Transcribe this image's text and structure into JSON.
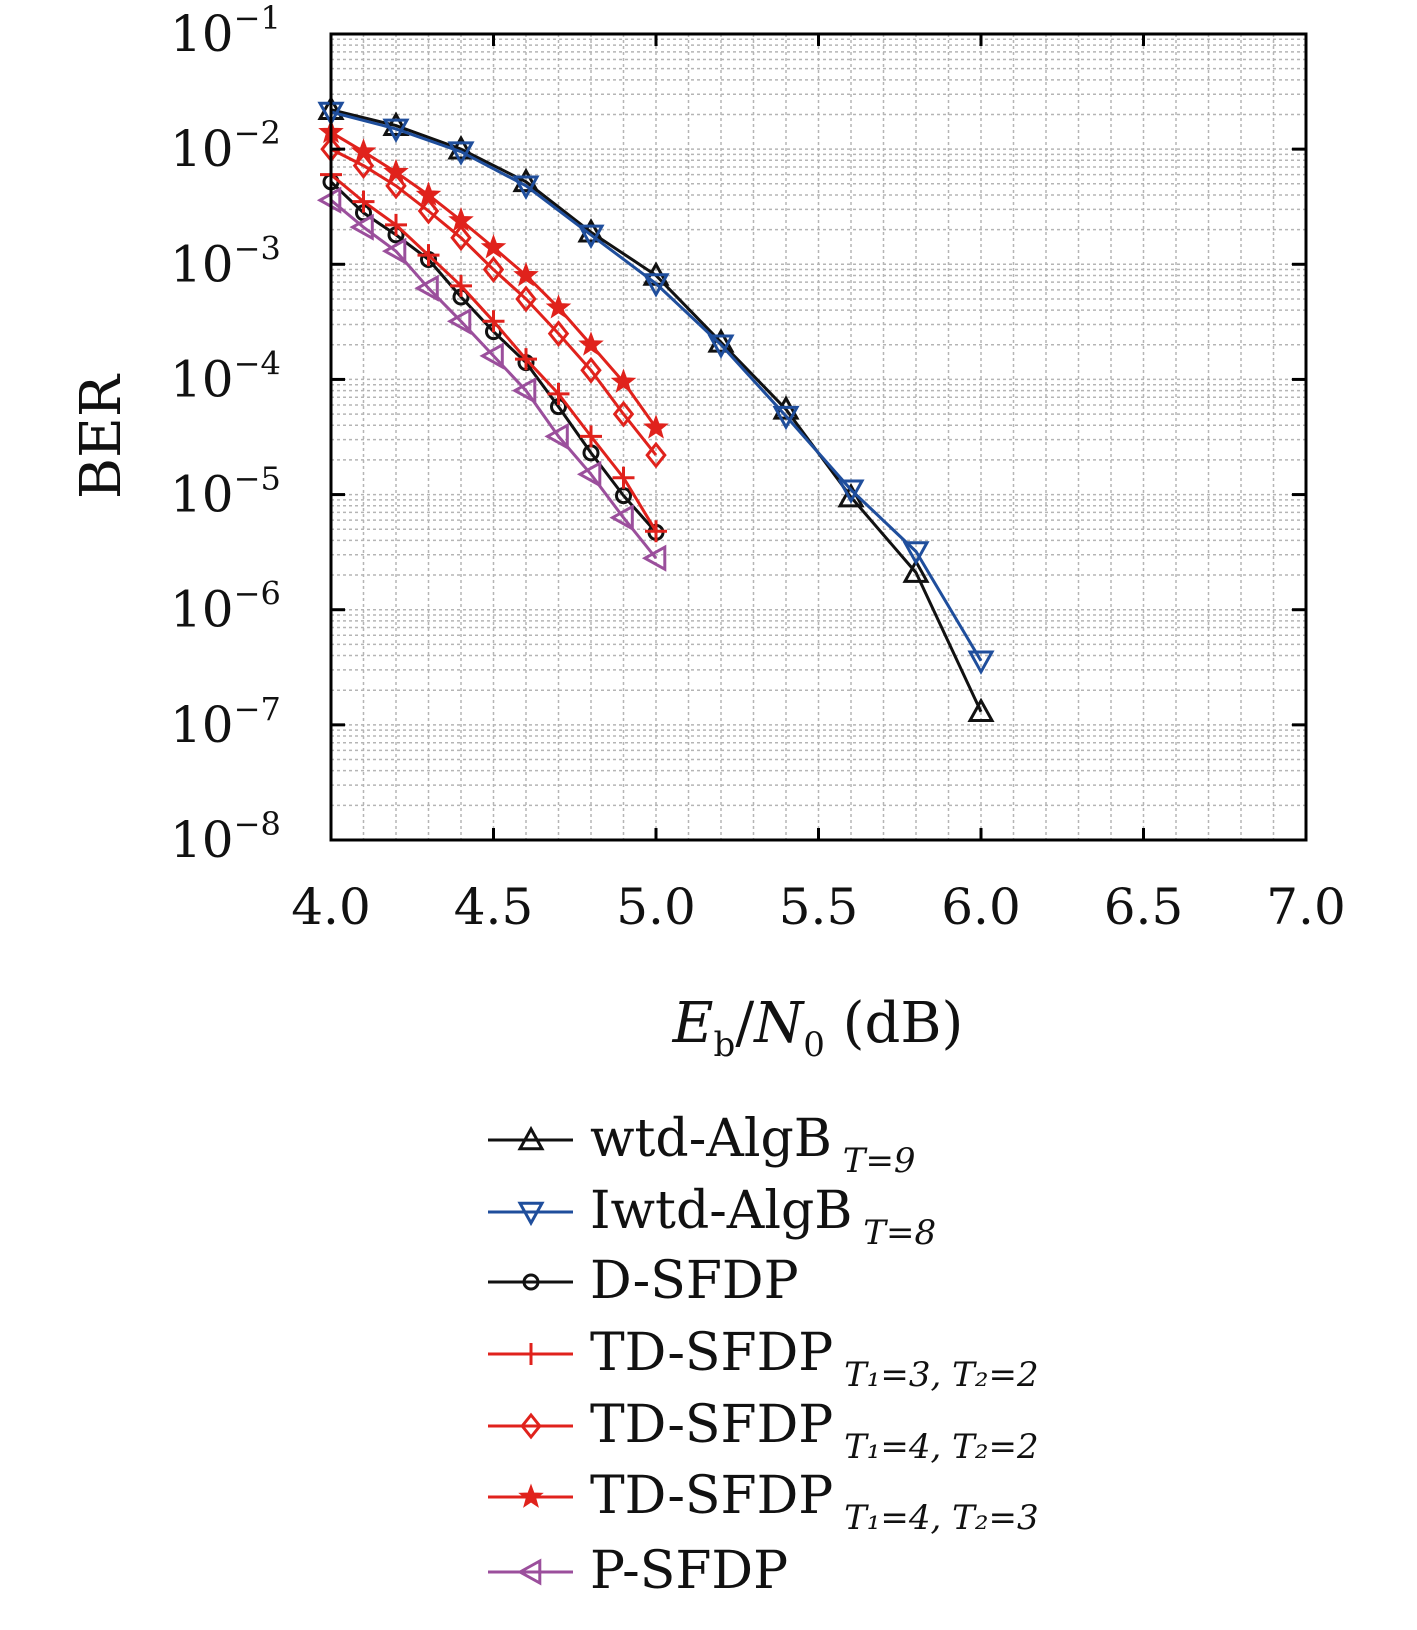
{
  "chart_data": {
    "type": "line",
    "xlabel": {
      "main": "E",
      "sub": "b",
      "sep": "/",
      "main2": "N",
      "sub2": "0",
      "unit": " (dB)"
    },
    "ylabel": "BER",
    "x_ticks": [
      "4.0",
      "4.5",
      "5.0",
      "5.5",
      "6.0",
      "6.5",
      "7.0"
    ],
    "y_ticks": [
      {
        "base": "10",
        "exp": "−1"
      },
      {
        "base": "10",
        "exp": "−2"
      },
      {
        "base": "10",
        "exp": "−3"
      },
      {
        "base": "10",
        "exp": "−4"
      },
      {
        "base": "10",
        "exp": "−5"
      },
      {
        "base": "10",
        "exp": "−6"
      },
      {
        "base": "10",
        "exp": "−7"
      },
      {
        "base": "10",
        "exp": "−8"
      }
    ],
    "xlim": [
      4.0,
      7.0
    ],
    "ylim": [
      1e-08,
      0.1
    ],
    "y_scale": "log",
    "grid": true,
    "legend_position": "bottom (below axes)",
    "series": [
      {
        "name": "wtd-AlgB",
        "sub": "T=9",
        "sub2": "",
        "color": "#111111",
        "marker": "triangle-up",
        "x": [
          4.0,
          4.2,
          4.4,
          4.6,
          4.8,
          5.0,
          5.2,
          5.4,
          5.6,
          5.8,
          6.0
        ],
        "y": [
          0.022,
          0.016,
          0.01,
          0.0052,
          0.0019,
          0.0008,
          0.00021,
          5.5e-05,
          9.5e-06,
          2.1e-06,
          1.3e-07
        ]
      },
      {
        "name": "Iwtd-AlgB",
        "sub": "T=8",
        "sub2": "",
        "color": "#1f4e9c",
        "marker": "triangle-down",
        "x": [
          4.0,
          4.2,
          4.4,
          4.6,
          4.8,
          5.0,
          5.2,
          5.4,
          5.6,
          5.8,
          6.0
        ],
        "y": [
          0.021,
          0.015,
          0.0095,
          0.0048,
          0.0018,
          0.00068,
          0.0002,
          4.8e-05,
          1.1e-05,
          3.2e-06,
          3.6e-07
        ]
      },
      {
        "name": "D-SFDP",
        "sub": "",
        "sub2": "",
        "color": "#111111",
        "marker": "circle",
        "x": [
          4.0,
          4.1,
          4.2,
          4.3,
          4.4,
          4.5,
          4.6,
          4.7,
          4.8,
          4.9,
          5.0
        ],
        "y": [
          0.0052,
          0.0028,
          0.0018,
          0.0011,
          0.00052,
          0.00026,
          0.00014,
          5.8e-05,
          2.3e-05,
          9.8e-06,
          4.7e-06
        ]
      },
      {
        "name": "TD-SFDP",
        "sub": "T₁=3,",
        "sub2": "T₂=2",
        "color": "#e0221c",
        "marker": "plus",
        "x": [
          4.0,
          4.1,
          4.2,
          4.3,
          4.4,
          4.5,
          4.6,
          4.7,
          4.8,
          4.9,
          5.0
        ],
        "y": [
          0.006,
          0.0035,
          0.0022,
          0.0012,
          0.00065,
          0.00032,
          0.00015,
          7.5e-05,
          3.2e-05,
          1.4e-05,
          4.8e-06
        ]
      },
      {
        "name": "TD-SFDP",
        "sub": "T₁=4,",
        "sub2": "T₂=2",
        "color": "#e0221c",
        "marker": "diamond",
        "x": [
          4.0,
          4.1,
          4.2,
          4.3,
          4.4,
          4.5,
          4.6,
          4.7,
          4.8,
          4.9,
          5.0
        ],
        "y": [
          0.01,
          0.0072,
          0.0048,
          0.0029,
          0.0017,
          0.0009,
          0.0005,
          0.00025,
          0.00012,
          5e-05,
          2.2e-05
        ]
      },
      {
        "name": "TD-SFDP",
        "sub": "T₁=4,",
        "sub2": "T₂=3",
        "color": "#e0221c",
        "marker": "star",
        "x": [
          4.0,
          4.1,
          4.2,
          4.3,
          4.4,
          4.5,
          4.6,
          4.7,
          4.8,
          4.9,
          5.0
        ],
        "y": [
          0.014,
          0.0095,
          0.0063,
          0.004,
          0.0024,
          0.0014,
          0.0008,
          0.00042,
          0.0002,
          9.5e-05,
          3.8e-05
        ]
      },
      {
        "name": "P-SFDP",
        "sub": "",
        "sub2": "",
        "color": "#9b4f9c",
        "marker": "triangle-left",
        "x": [
          4.0,
          4.1,
          4.2,
          4.3,
          4.4,
          4.5,
          4.6,
          4.7,
          4.8,
          4.9,
          5.0
        ],
        "y": [
          0.0036,
          0.0021,
          0.0013,
          0.00062,
          0.00032,
          0.00016,
          8e-05,
          3.2e-05,
          1.5e-05,
          6.3e-06,
          2.8e-06
        ]
      }
    ]
  }
}
